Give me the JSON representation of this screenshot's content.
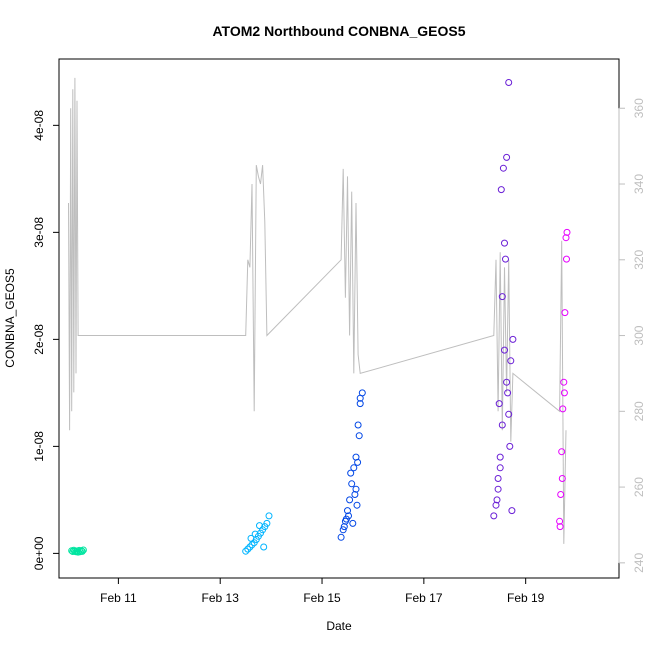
{
  "chart_data": {
    "type": "scatter",
    "title": "ATOM2 Northbound CONBNA_GEOS5",
    "xlabel": "Date",
    "ylabel": "CONBNA_GEOS5",
    "xlim": [
      "2016-02-09T20:00",
      "2016-02-20T20:00"
    ],
    "ylim": [
      -2.3e-09,
      4.62e-08
    ],
    "x_ticks": [
      {
        "value": "2016-02-11",
        "label": "Feb 11"
      },
      {
        "value": "2016-02-13",
        "label": "Feb 13"
      },
      {
        "value": "2016-02-15",
        "label": "Feb 15"
      },
      {
        "value": "2016-02-17",
        "label": "Feb 17"
      },
      {
        "value": "2016-02-19",
        "label": "Feb 19"
      }
    ],
    "y_ticks": [
      {
        "value": 0,
        "label": "0e+00"
      },
      {
        "value": 1e-08,
        "label": "1e-08"
      },
      {
        "value": 2e-08,
        "label": "2e-08"
      },
      {
        "value": 3e-08,
        "label": "3e-08"
      },
      {
        "value": 4e-08,
        "label": "4e-08"
      }
    ],
    "secondary_axis": {
      "side": "right",
      "color": "#bebebe",
      "ylim": [
        236,
        373
      ],
      "ticks": [
        {
          "value": 240,
          "label": "240"
        },
        {
          "value": 260,
          "label": "260"
        },
        {
          "value": 280,
          "label": "280"
        },
        {
          "value": 300,
          "label": "300"
        },
        {
          "value": 320,
          "label": "320"
        },
        {
          "value": 340,
          "label": "340"
        },
        {
          "value": 360,
          "label": "360"
        }
      ]
    },
    "grid": false,
    "legend": "none",
    "point_clusters": [
      {
        "color": "#00e5a0",
        "x": [
          "2016-02-10T02:00",
          "2016-02-10T02:30",
          "2016-02-10T03:00",
          "2016-02-10T03:30",
          "2016-02-10T04:00",
          "2016-02-10T04:30",
          "2016-02-10T05:00",
          "2016-02-10T05:30",
          "2016-02-10T06:00",
          "2016-02-10T06:30",
          "2016-02-10T07:00",
          "2016-02-10T07:30"
        ],
        "y": [
          2.5e-10,
          1.8e-10,
          3e-10,
          2e-10,
          1.5e-10,
          2.2e-10,
          1.2e-10,
          2.8e-10,
          1.6e-10,
          2.4e-10,
          1.9e-10,
          3.2e-10
        ]
      },
      {
        "color": "#00b4ff",
        "x": [
          "2016-02-13T12:00",
          "2016-02-13T13:00",
          "2016-02-13T14:00",
          "2016-02-13T15:00",
          "2016-02-13T16:00",
          "2016-02-13T17:00",
          "2016-02-13T18:00",
          "2016-02-13T19:00",
          "2016-02-13T20:00",
          "2016-02-13T21:00",
          "2016-02-13T22:00",
          "2016-02-13T23:00",
          "2016-02-13T14:30",
          "2016-02-13T16:30",
          "2016-02-13T18:30",
          "2016-02-13T20:30"
        ],
        "y": [
          2e-10,
          4e-10,
          6e-10,
          8e-10,
          1e-09,
          1.3e-09,
          1.6e-09,
          1.9e-09,
          2.2e-09,
          2.5e-09,
          2.8e-09,
          3.5e-09,
          1.4e-09,
          1.8e-09,
          2.6e-09,
          6e-10
        ]
      },
      {
        "color": "#0046e6",
        "x": [
          "2016-02-15T09:00",
          "2016-02-15T10:00",
          "2016-02-15T11:00",
          "2016-02-15T12:00",
          "2016-02-15T13:00",
          "2016-02-15T14:00",
          "2016-02-15T15:00",
          "2016-02-15T16:00",
          "2016-02-15T17:00",
          "2016-02-15T18:00",
          "2016-02-15T19:00",
          "2016-02-15T10:30",
          "2016-02-15T12:30",
          "2016-02-15T14:30",
          "2016-02-15T16:30",
          "2016-02-15T18:00",
          "2016-02-15T17:30",
          "2016-02-15T15:30",
          "2016-02-15T13:30",
          "2016-02-15T11:30",
          "2016-02-15T16:00",
          "2016-02-15T16:45"
        ],
        "y": [
          1.5e-09,
          2.2e-09,
          3e-09,
          4e-09,
          5e-09,
          6.5e-09,
          8e-09,
          9e-09,
          1.2e-08,
          1.45e-08,
          1.5e-08,
          2.5e-09,
          3.5e-09,
          2.8e-09,
          4.5e-09,
          1.4e-08,
          1.1e-08,
          5.5e-09,
          7.5e-09,
          3.2e-09,
          6e-09,
          8.5e-09
        ]
      },
      {
        "color": "#6a1fd6",
        "x": [
          "2016-02-18T09:00",
          "2016-02-18T10:00",
          "2016-02-18T11:00",
          "2016-02-18T12:00",
          "2016-02-18T13:00",
          "2016-02-18T14:00",
          "2016-02-18T15:00",
          "2016-02-18T16:00",
          "2016-02-18T17:00",
          "2016-02-18T18:00",
          "2016-02-18T12:30",
          "2016-02-18T13:30",
          "2016-02-18T14:30",
          "2016-02-18T15:30",
          "2016-02-18T16:30",
          "2016-02-18T11:30",
          "2016-02-18T10:30",
          "2016-02-18T13:00",
          "2016-02-18T14:00",
          "2016-02-18T15:00",
          "2016-02-18T16:00",
          "2016-02-18T12:00",
          "2016-02-18T17:30",
          "2016-02-18T11:00"
        ],
        "y": [
          3.5e-09,
          4.5e-09,
          6e-09,
          8e-09,
          1.2e-08,
          2.9e-08,
          3.7e-08,
          4.4e-08,
          1.8e-08,
          2e-08,
          3.4e-08,
          3.6e-08,
          2.75e-08,
          1.5e-08,
          1e-08,
          1.4e-08,
          5e-09,
          2.4e-08,
          1.9e-08,
          1.6e-08,
          1.3e-08,
          9e-09,
          4e-09,
          7e-09
        ]
      },
      {
        "color": "#e600ff",
        "x": [
          "2016-02-19T16:00",
          "2016-02-19T16:30",
          "2016-02-19T17:00",
          "2016-02-19T17:30",
          "2016-02-19T18:00",
          "2016-02-19T18:30",
          "2016-02-19T19:00",
          "2016-02-19T19:30",
          "2016-02-19T16:15",
          "2016-02-19T17:15",
          "2016-02-19T18:15",
          "2016-02-19T19:15"
        ],
        "y": [
          3e-09,
          5.5e-09,
          9.5e-09,
          1.35e-08,
          1.6e-08,
          2.25e-08,
          2.95e-08,
          3e-08,
          2.5e-09,
          7e-09,
          1.5e-08,
          2.75e-08
        ]
      }
    ],
    "secondary_series": {
      "name": "",
      "color": "#bebebe",
      "x": [
        "2016-02-10T00:30",
        "2016-02-10T01:00",
        "2016-02-10T01:30",
        "2016-02-10T02:00",
        "2016-02-10T02:30",
        "2016-02-10T03:00",
        "2016-02-10T03:30",
        "2016-02-10T04:00",
        "2016-02-10T04:30",
        "2016-02-10T05:00",
        "2016-02-13T12:00",
        "2016-02-13T13:00",
        "2016-02-13T14:00",
        "2016-02-13T15:00",
        "2016-02-13T16:00",
        "2016-02-13T17:00",
        "2016-02-13T18:00",
        "2016-02-13T19:00",
        "2016-02-13T20:00",
        "2016-02-13T21:00",
        "2016-02-13T22:00",
        "2016-02-15T09:00",
        "2016-02-15T10:00",
        "2016-02-15T11:00",
        "2016-02-15T12:00",
        "2016-02-15T13:00",
        "2016-02-15T14:00",
        "2016-02-15T15:00",
        "2016-02-15T16:00",
        "2016-02-15T17:00",
        "2016-02-15T18:00",
        "2016-02-18T09:00",
        "2016-02-18T10:00",
        "2016-02-18T11:00",
        "2016-02-18T12:00",
        "2016-02-18T13:00",
        "2016-02-18T14:00",
        "2016-02-18T15:00",
        "2016-02-18T16:00",
        "2016-02-18T17:00",
        "2016-02-18T18:00",
        "2016-02-19T16:00",
        "2016-02-19T17:00",
        "2016-02-19T18:00",
        "2016-02-19T19:00"
      ],
      "y": [
        335,
        275,
        360,
        280,
        365,
        285,
        368,
        290,
        362,
        300,
        300,
        320,
        318,
        340,
        280,
        345,
        342,
        340,
        345,
        330,
        300,
        320,
        344,
        310,
        342,
        300,
        338,
        290,
        335,
        295,
        290,
        300,
        320,
        280,
        322,
        275,
        318,
        285,
        320,
        272,
        290,
        280,
        325,
        245,
        275
      ]
    }
  }
}
